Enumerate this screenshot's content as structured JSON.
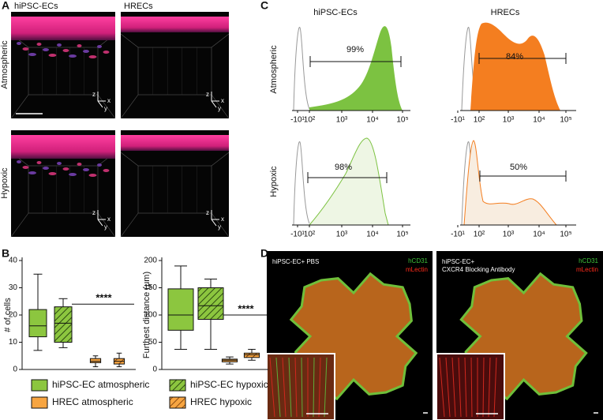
{
  "panel_labels": {
    "a": "A",
    "b": "B",
    "c": "C",
    "d": "D"
  },
  "panel_a": {
    "columns": [
      "hiPSC-ECs",
      "HRECs"
    ],
    "rows": [
      "Atmospheric",
      "Hypoxic"
    ],
    "axis_glyph": {
      "z": "z",
      "x": "x",
      "y": "y"
    }
  },
  "panel_c": {
    "columns": [
      "hiPSC-ECs",
      "HRECs"
    ],
    "rows": [
      "Atmospheric",
      "Hypoxic"
    ],
    "gates": [
      "99%",
      "84%",
      "98%",
      "50%"
    ],
    "x_tick_labels": [
      "-10¹",
      "10²",
      "10³",
      "10⁴",
      "10⁵"
    ]
  },
  "panel_d": {
    "left": {
      "title_lines": [
        "hiPSC-EC+ PBS"
      ],
      "stains": [
        "hCD31",
        "mLectin"
      ]
    },
    "right": {
      "title_lines": [
        "hiPSC-EC+",
        "CXCR4 Blocking Antibody"
      ],
      "stains": [
        "hCD31",
        "mLectin"
      ]
    }
  },
  "chart_data": [
    {
      "type": "box",
      "ylabel": "# of cells",
      "ylim": [
        0,
        40
      ],
      "yticks": [
        0,
        10,
        20,
        30,
        40
      ],
      "series": [
        {
          "name": "hiPSC-EC atmospheric",
          "color": "#8cc63f",
          "pattern": "solid",
          "min": 7,
          "q1": 12,
          "median": 16,
          "q3": 22,
          "max": 35
        },
        {
          "name": "hiPSC-EC hypoxic",
          "color": "#8cc63f",
          "pattern": "hatched",
          "min": 8,
          "q1": 10,
          "median": 17,
          "q3": 23,
          "max": 26
        },
        {
          "name": "HREC atmospheric",
          "color": "#f7a541",
          "pattern": "solid",
          "min": 1,
          "q1": 2.5,
          "median": 3,
          "q3": 4,
          "max": 5
        },
        {
          "name": "HREC hypoxic",
          "color": "#f7a541",
          "pattern": "hatched",
          "min": 1,
          "q1": 2,
          "median": 3,
          "q3": 4,
          "max": 6
        }
      ],
      "annotations": [
        {
          "text": "****",
          "y": 24
        }
      ]
    },
    {
      "type": "box",
      "ylabel": "Furthest distance (μm)",
      "ylim": [
        0,
        200
      ],
      "yticks": [
        0,
        50,
        100,
        150,
        200
      ],
      "series": [
        {
          "color": "#8cc63f",
          "pattern": "solid",
          "min": 37,
          "q1": 72,
          "median": 100,
          "q3": 148,
          "max": 190
        },
        {
          "color": "#8cc63f",
          "pattern": "hatched",
          "min": 37,
          "q1": 92,
          "median": 117,
          "q3": 150,
          "max": 166
        },
        {
          "color": "#f7a541",
          "pattern": "solid",
          "min": 10,
          "q1": 14,
          "median": 17,
          "q3": 19,
          "max": 23
        },
        {
          "color": "#f7a541",
          "pattern": "hatched",
          "min": 17,
          "q1": 22,
          "median": 27,
          "q3": 30,
          "max": 37
        }
      ],
      "annotations": [
        {
          "text": "****",
          "y": 100
        }
      ]
    }
  ]
}
